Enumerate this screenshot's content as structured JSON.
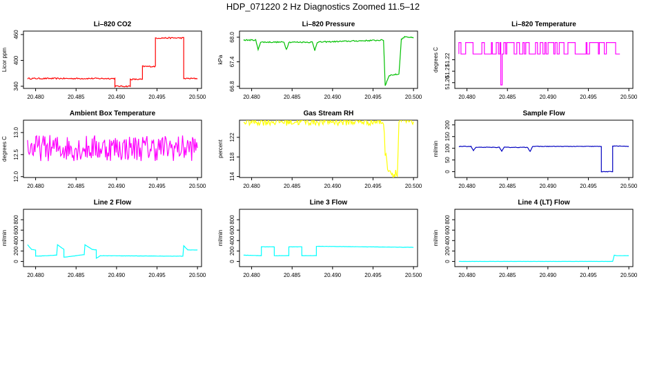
{
  "page": {
    "title": "HDP_071220  2 Hz Diagnostics Zoomed 11.5–12"
  },
  "chart_data": [
    {
      "type": "line",
      "title": "Li–820 CO2",
      "xlabel": "",
      "ylabel": "Licor ppm",
      "color": "#ff0000",
      "xlim": [
        20.4785,
        20.5005
      ],
      "ylim": [
        335,
        468
      ],
      "xticks": [
        "20.480",
        "20.485",
        "20.490",
        "20.495",
        "20.500"
      ],
      "yticks": [
        "340",
        "400",
        "460"
      ],
      "series": [
        {
          "x": [
            20.479,
            20.4898,
            20.4898,
            20.4917,
            20.4917,
            20.4932,
            20.4932,
            20.4948,
            20.4948,
            20.4983,
            20.4983,
            20.5
          ],
          "y": [
            358,
            358,
            340,
            340,
            356,
            356,
            386,
            386,
            452,
            452,
            358,
            358
          ],
          "noise": 1.5
        }
      ]
    },
    {
      "type": "line",
      "title": "Li–820 Pressure",
      "xlabel": "",
      "ylabel": "kPa",
      "color": "#00c000",
      "xlim": [
        20.4785,
        20.5005
      ],
      "ylim": [
        66.75,
        68.15
      ],
      "xticks": [
        "20.480",
        "20.485",
        "20.490",
        "20.495",
        "20.500"
      ],
      "yticks": [
        "66.8",
        "67.4",
        "68.0"
      ],
      "series": [
        {
          "x": [
            20.479,
            20.4805,
            20.4808,
            20.4811,
            20.484,
            20.4843,
            20.4846,
            20.4875,
            20.4878,
            20.4881,
            20.4963,
            20.4965,
            20.497,
            20.497,
            20.4982,
            20.4985,
            20.499,
            20.5
          ],
          "y": [
            67.93,
            67.93,
            67.7,
            67.88,
            67.88,
            67.7,
            67.88,
            67.88,
            67.68,
            67.88,
            67.93,
            66.82,
            67.07,
            67.07,
            67.1,
            67.95,
            68.02,
            67.98
          ],
          "noise": 0.015
        }
      ]
    },
    {
      "type": "line",
      "title": "Li–820 Temperature",
      "xlabel": "",
      "ylabel": "degrees C",
      "color": "#ff00ff",
      "xlim": [
        20.4785,
        20.5005
      ],
      "ylim": [
        51.195,
        51.245
      ],
      "xticks": [
        "20.480",
        "20.485",
        "20.490",
        "20.495",
        "20.500"
      ],
      "yticks": [
        "51.20",
        "51.21",
        "51.22"
      ],
      "series": [
        {
          "x": [
            20.479,
            20.499
          ],
          "y": [
            51.225,
            51.225
          ],
          "noise": 0
        }
      ]
    },
    {
      "type": "line",
      "title": "Ambient Box Temperature",
      "xlabel": "",
      "ylabel": "degrees C",
      "color": "#ff00ff",
      "xlim": [
        20.4785,
        20.5005
      ],
      "ylim": [
        11.98,
        13.28
      ],
      "xticks": [
        "20.480",
        "20.485",
        "20.490",
        "20.495",
        "20.500"
      ],
      "yticks": [
        "12.0",
        "12.5",
        "13.0"
      ],
      "series": [
        {
          "x": [
            20.479,
            20.5
          ],
          "y": [
            12.65,
            12.65
          ],
          "noise": 0.3
        }
      ]
    },
    {
      "type": "line",
      "title": "Gas Stream RH",
      "xlabel": "",
      "ylabel": "percent",
      "color": "#ffff00",
      "xlim": [
        20.4785,
        20.5005
      ],
      "ylim": [
        113.8,
        125.5
      ],
      "xticks": [
        "20.480",
        "20.485",
        "20.490",
        "20.495",
        "20.500"
      ],
      "yticks": [
        "114",
        "118",
        "122"
      ],
      "series": [
        {
          "x": [
            20.479,
            20.4963,
            20.4965,
            20.4968,
            20.4975,
            20.4978,
            20.498,
            20.4982,
            20.4984,
            20.5
          ],
          "y": [
            125.2,
            125.2,
            119,
            116,
            114.2,
            115,
            114,
            125.2,
            125.2,
            125.2
          ],
          "noise": 0.8
        }
      ]
    },
    {
      "type": "line",
      "title": "Sample Flow",
      "xlabel": "",
      "ylabel": "ml/min",
      "color": "#0000c0",
      "xlim": [
        20.4785,
        20.5005
      ],
      "ylim": [
        -25,
        220
      ],
      "xticks": [
        "20.480",
        "20.485",
        "20.490",
        "20.495",
        "20.500"
      ],
      "yticks": [
        "0",
        "50",
        "100",
        "150",
        "200"
      ],
      "series": [
        {
          "x": [
            20.479,
            20.4805,
            20.4808,
            20.4811,
            20.484,
            20.4843,
            20.4846,
            20.4875,
            20.4878,
            20.4881,
            20.4966,
            20.4966,
            20.498,
            20.498,
            20.5
          ],
          "y": [
            108,
            108,
            90,
            104,
            104,
            88,
            104,
            104,
            86,
            108,
            108,
            0,
            0,
            110,
            108
          ],
          "noise": 1
        }
      ]
    },
    {
      "type": "line",
      "title": "Line 2 Flow",
      "xlabel": "",
      "ylabel": "ml/min",
      "color": "#00ffff",
      "xlim": [
        20.4785,
        20.5005
      ],
      "ylim": [
        -100,
        1000
      ],
      "xticks": [
        "20.480",
        "20.485",
        "20.490",
        "20.495",
        "20.500"
      ],
      "yticks": [
        "0",
        "200",
        "400",
        "600",
        "800"
      ],
      "series": [
        {
          "x": [
            20.479,
            20.4795,
            20.48,
            20.48,
            20.4826,
            20.4827,
            20.4835,
            20.4835,
            20.486,
            20.4861,
            20.487,
            20.4875,
            20.4875,
            20.488,
            20.4982,
            20.4983,
            20.4988,
            20.5
          ],
          "y": [
            320,
            230,
            220,
            100,
            120,
            320,
            230,
            80,
            130,
            320,
            230,
            220,
            60,
            110,
            100,
            300,
            220,
            220
          ],
          "noise": 2
        }
      ]
    },
    {
      "type": "line",
      "title": "Line 3 Flow",
      "xlabel": "",
      "ylabel": "ml/min",
      "color": "#00ffff",
      "xlim": [
        20.4785,
        20.5005
      ],
      "ylim": [
        -100,
        1000
      ],
      "xticks": [
        "20.480",
        "20.485",
        "20.490",
        "20.495",
        "20.500"
      ],
      "yticks": [
        "0",
        "200",
        "400",
        "600",
        "800"
      ],
      "series": [
        {
          "x": [
            20.479,
            20.4812,
            20.4812,
            20.4828,
            20.4828,
            20.4846,
            20.4846,
            20.4862,
            20.4862,
            20.488,
            20.488,
            20.5
          ],
          "y": [
            120,
            110,
            280,
            280,
            110,
            110,
            280,
            280,
            110,
            110,
            290,
            270
          ],
          "noise": 2
        }
      ]
    },
    {
      "type": "line",
      "title": "Line 4 (LT) Flow",
      "xlabel": "",
      "ylabel": "ml/min",
      "color": "#00ffff",
      "xlim": [
        20.4785,
        20.5005
      ],
      "ylim": [
        -100,
        1000
      ],
      "xticks": [
        "20.480",
        "20.485",
        "20.490",
        "20.495",
        "20.500"
      ],
      "yticks": [
        "0",
        "200",
        "400",
        "600",
        "800"
      ],
      "series": [
        {
          "x": [
            20.479,
            20.498,
            20.4982,
            20.4985,
            20.5
          ],
          "y": [
            0,
            0,
            120,
            110,
            110
          ],
          "noise": 1
        }
      ]
    }
  ]
}
